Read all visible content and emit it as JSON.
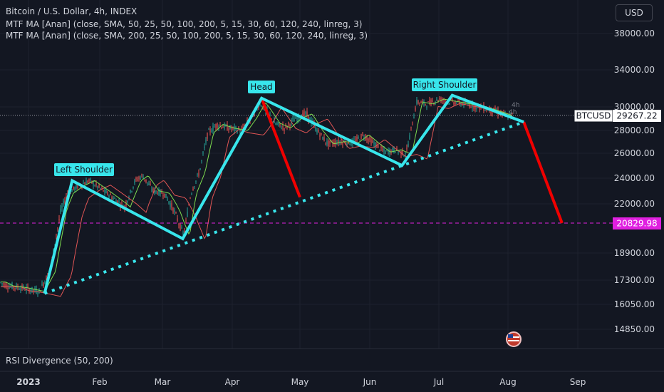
{
  "header": {
    "symbol_line": "Bitcoin / U.S. Dollar, 4h, INDEX",
    "indicator_1": "MTF MA [Anan] (close, SMA, 50, 25, 50, 100, 200, 5, 15, 30, 60, 120, 240, linreg, 3)",
    "indicator_2": "MTF MA [Anan] (close, SMA, 200, 25, 50, 100, 200, 5, 15, 30, 60, 120, 240, linreg, 3)",
    "currency_button": "USD"
  },
  "lower_pane": {
    "title": "RSI Divergence (50, 200)"
  },
  "chart_data": {
    "type": "line",
    "title": "Bitcoin / U.S. Dollar, 4h, INDEX",
    "y_ticks": [
      38000,
      34000,
      30000,
      28000,
      26000,
      24000,
      22000,
      18900,
      17300,
      16050,
      14850
    ],
    "y_tick_labels": [
      "38000.00",
      "34000.00",
      "30000.00",
      "28000.00",
      "26000.00",
      "24000.00",
      "22000.00",
      "18900.00",
      "17300.00",
      "16050.00",
      "14850.00"
    ],
    "x_ticks": [
      "2023",
      "Feb",
      "Mar",
      "Apr",
      "May",
      "Jun",
      "Jul",
      "Aug",
      "Sep"
    ],
    "price_label": {
      "symbol": "BTCUSD",
      "value": "29267.22",
      "numeric": 29267.22
    },
    "target_label": {
      "value": "20829.98",
      "numeric": 20829.98
    },
    "pattern_labels": [
      "Left Shoulder",
      "Head",
      "Right Shoulder"
    ],
    "ma_labels": [
      "4h",
      "4h"
    ],
    "pattern_points": [
      {
        "date": "2023-01-08",
        "price": 16600
      },
      {
        "date": "2023-01-20",
        "price": 23800
      },
      {
        "date": "2023-03-10",
        "price": 19800
      },
      {
        "date": "2023-04-14",
        "price": 30900
      },
      {
        "date": "2023-06-15",
        "price": 25000
      },
      {
        "date": "2023-07-07",
        "price": 31200
      },
      {
        "date": "2023-08-08",
        "price": 28700
      }
    ],
    "neckline": [
      {
        "date": "2023-01-08",
        "price": 16600
      },
      {
        "date": "2023-08-08",
        "price": 28700
      }
    ],
    "projections": [
      {
        "from": {
          "date": "2023-04-14",
          "price": 30900
        },
        "to": {
          "date": "2023-05-01",
          "price": 22500
        }
      },
      {
        "from": {
          "date": "2023-08-08",
          "price": 28700
        },
        "to": {
          "date": "2023-08-25",
          "price": 20829.98
        }
      }
    ],
    "colors": {
      "background": "#131722",
      "pattern": "#38e6ec",
      "projection": "#f00000",
      "target": "#e020e0",
      "ma_fast": "#7ddc4f",
      "ma_slow": "#e05555",
      "candle_up": "#26a69a",
      "candle_down": "#ef5350"
    }
  }
}
